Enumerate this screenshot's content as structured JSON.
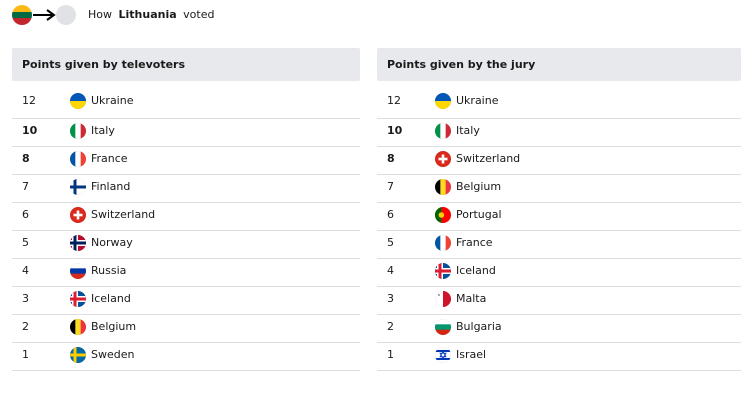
{
  "header": {
    "prefix": "How",
    "country": "Lithuania",
    "suffix": "voted"
  },
  "tables": [
    {
      "title": "Points given by televoters",
      "rows": [
        {
          "points": 12,
          "country": "Ukraine"
        },
        {
          "points": 10,
          "country": "Italy"
        },
        {
          "points": 8,
          "country": "France"
        },
        {
          "points": 7,
          "country": "Finland"
        },
        {
          "points": 6,
          "country": "Switzerland"
        },
        {
          "points": 5,
          "country": "Norway"
        },
        {
          "points": 4,
          "country": "Russia"
        },
        {
          "points": 3,
          "country": "Iceland"
        },
        {
          "points": 2,
          "country": "Belgium"
        },
        {
          "points": 1,
          "country": "Sweden"
        }
      ]
    },
    {
      "title": "Points given by the jury",
      "rows": [
        {
          "points": 12,
          "country": "Ukraine"
        },
        {
          "points": 10,
          "country": "Italy"
        },
        {
          "points": 8,
          "country": "Switzerland"
        },
        {
          "points": 7,
          "country": "Belgium"
        },
        {
          "points": 6,
          "country": "Portugal"
        },
        {
          "points": 5,
          "country": "France"
        },
        {
          "points": 4,
          "country": "Iceland"
        },
        {
          "points": 3,
          "country": "Malta"
        },
        {
          "points": 2,
          "country": "Bulgaria"
        },
        {
          "points": 1,
          "country": "Israel"
        }
      ]
    }
  ]
}
